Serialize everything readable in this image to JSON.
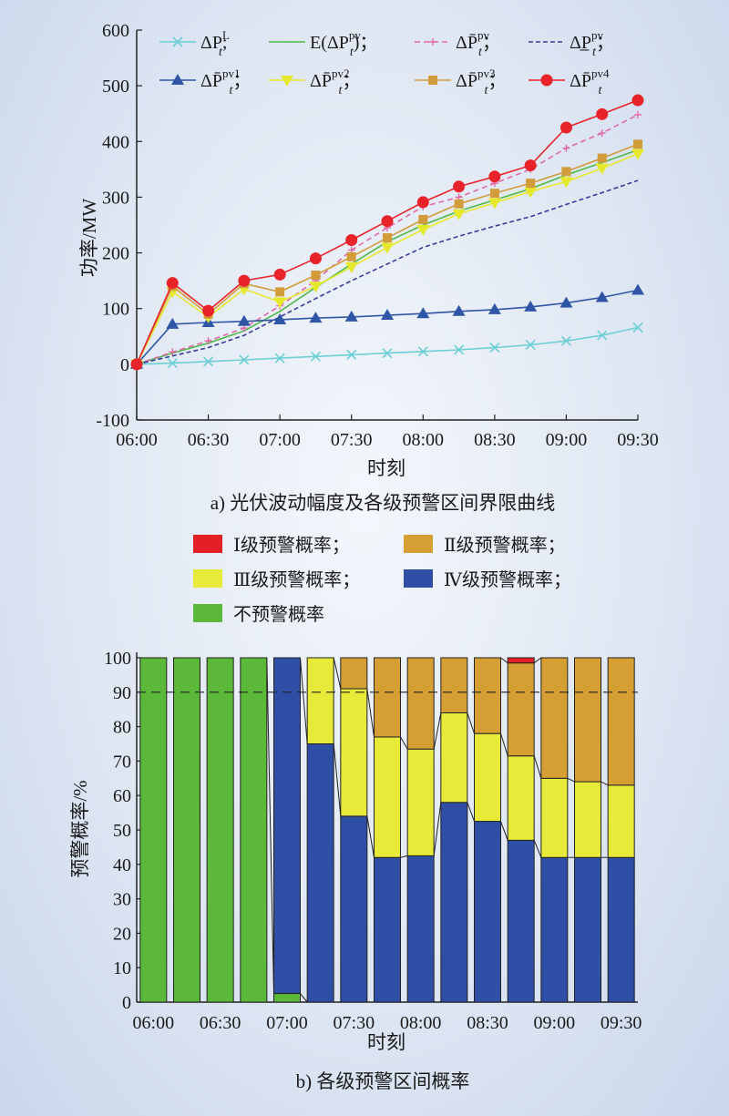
{
  "charts": [
    {
      "type": "line",
      "caption": "a) 光伏波动幅度及各级预警区间界限曲线",
      "xlabel": "时刻",
      "ylabel": "功率/MW",
      "ylim": [
        -100,
        600
      ],
      "yticks": [
        -100,
        0,
        100,
        200,
        300,
        400,
        500,
        600
      ],
      "xtick_labels": [
        "06:00",
        "06:30",
        "07:00",
        "07:30",
        "08:00",
        "08:30",
        "09:00",
        "09:30"
      ],
      "x": [
        "06:00",
        "06:15",
        "06:30",
        "06:45",
        "07:00",
        "07:15",
        "07:30",
        "07:45",
        "08:00",
        "08:15",
        "08:30",
        "08:45",
        "09:00",
        "09:15",
        "09:30"
      ],
      "legend_labels": [
        "ΔP_t^L;",
        "E(ΔP_t^pv);",
        "ΔP̄_t^pv;",
        "ΔP_t^pv;",
        "ΔP̄_t^pv1;",
        "ΔP̄_t^pv2;",
        "ΔP̄_t^pv3;",
        "ΔP̄_t^pv4"
      ],
      "series": [
        {
          "marker": "x",
          "color": "#6ccfd6",
          "dash": "",
          "values": [
            0,
            2,
            5,
            8,
            11,
            14,
            17,
            20,
            23,
            26,
            30,
            35,
            42,
            52,
            66
          ]
        },
        {
          "marker": "",
          "color": "#4fb84a",
          "dash": "",
          "values": [
            0,
            20,
            38,
            60,
            95,
            138,
            180,
            220,
            250,
            275,
            295,
            315,
            340,
            362,
            385
          ]
        },
        {
          "marker": "plus",
          "color": "#e06aa8",
          "dash": "6,4",
          "values": [
            0,
            22,
            42,
            65,
            105,
            150,
            205,
            245,
            283,
            300,
            325,
            350,
            388,
            415,
            448
          ]
        },
        {
          "marker": "",
          "color": "#3a3a9a",
          "dash": "5,3",
          "values": [
            0,
            15,
            30,
            52,
            85,
            118,
            150,
            180,
            210,
            230,
            248,
            265,
            287,
            308,
            330
          ]
        },
        {
          "marker": "triangle",
          "color": "#2f56a6",
          "dash": "",
          "values": [
            0,
            72,
            75,
            77,
            80,
            83,
            85,
            88,
            91,
            95,
            98,
            103,
            110,
            120,
            133
          ]
        },
        {
          "marker": "triangle-down",
          "color": "#e6e82c",
          "dash": "",
          "values": [
            0,
            130,
            85,
            135,
            112,
            140,
            175,
            210,
            242,
            270,
            290,
            310,
            328,
            352,
            378
          ]
        },
        {
          "marker": "square",
          "color": "#d29c3a",
          "dash": "",
          "values": [
            0,
            140,
            90,
            145,
            130,
            160,
            193,
            227,
            260,
            288,
            307,
            325,
            346,
            370,
            395
          ]
        },
        {
          "marker": "circle",
          "color": "#e8232a",
          "dash": "",
          "values": [
            0,
            146,
            96,
            150,
            161,
            190,
            223,
            257,
            291,
            319,
            337,
            357,
            425,
            449,
            474
          ]
        }
      ]
    },
    {
      "type": "bar",
      "stacked": true,
      "caption": "b) 各级预警区间概率",
      "xlabel": "时刻",
      "ylabel": "预警概率/%",
      "ylim": [
        0,
        100
      ],
      "yticks": [
        0,
        10,
        20,
        30,
        40,
        50,
        60,
        70,
        80,
        90,
        100
      ],
      "xtick_labels": [
        "06:00",
        "06:30",
        "07:00",
        "07:30",
        "08:00",
        "08:30",
        "09:00",
        "09:30"
      ],
      "threshold": 90,
      "legend_labels": [
        "Ⅰ级预警概率；",
        "Ⅱ级预警概率；",
        "Ⅲ级预警概率；",
        "Ⅳ级预警概率；",
        "不预警概率"
      ],
      "colors": {
        "none": "#5cb839",
        "iv": "#2f4ea6",
        "iii": "#e8ea3a",
        "ii": "#d69f34",
        "i": "#e41f26"
      },
      "bars": [
        {
          "none": 100,
          "iv": 0,
          "iii": 0,
          "ii": 0,
          "i": 0
        },
        {
          "none": 100,
          "iv": 0,
          "iii": 0,
          "ii": 0,
          "i": 0
        },
        {
          "none": 100,
          "iv": 0,
          "iii": 0,
          "ii": 0,
          "i": 0
        },
        {
          "none": 100,
          "iv": 0,
          "iii": 0,
          "ii": 0,
          "i": 0
        },
        {
          "none": 2.5,
          "iv": 97.5,
          "iii": 0,
          "ii": 0,
          "i": 0
        },
        {
          "none": 0,
          "iv": 75,
          "iii": 25,
          "ii": 0,
          "i": 0
        },
        {
          "none": 0,
          "iv": 54,
          "iii": 37,
          "ii": 9,
          "i": 0
        },
        {
          "none": 0,
          "iv": 42,
          "iii": 35,
          "ii": 23,
          "i": 0
        },
        {
          "none": 0,
          "iv": 42.5,
          "iii": 31,
          "ii": 26.5,
          "i": 0
        },
        {
          "none": 0,
          "iv": 58,
          "iii": 26,
          "ii": 16,
          "i": 0
        },
        {
          "none": 0,
          "iv": 52.5,
          "iii": 25.5,
          "ii": 22,
          "i": 0
        },
        {
          "none": 0,
          "iv": 47,
          "iii": 24.5,
          "ii": 27,
          "i": 1.5
        },
        {
          "none": 0,
          "iv": 42,
          "iii": 23,
          "ii": 35,
          "i": 0
        },
        {
          "none": 0,
          "iv": 42,
          "iii": 22,
          "ii": 36,
          "i": 0
        },
        {
          "none": 0,
          "iv": 42,
          "iii": 21,
          "ii": 37,
          "i": 0
        }
      ]
    }
  ]
}
